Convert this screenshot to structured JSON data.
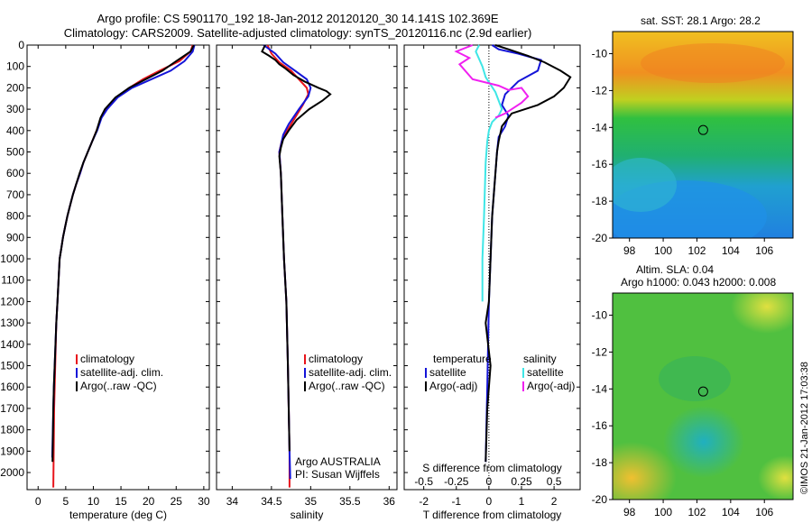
{
  "titles": {
    "line1": "Argo profile: CS 5901170_192 18-Jan-2012 20120120_30 14.141S 102.369E",
    "line2": "Climatology: CARS2009. Satellite-adjusted climatology: synTS_20120116.nc (2.9d earlier)"
  },
  "sst_map": {
    "title": "sat. SST: 28.1 Argo: 28.2"
  },
  "sla_map": {
    "title1": "Altim. SLA: 0.04",
    "title2": "Argo h1000: 0.043 h2000: 0.008"
  },
  "stamp": "©IMOS 21-Jan-2012 17:03:38",
  "colors": {
    "climatology": "#e8141b",
    "satellite": "#1414d8",
    "argo": "#000000",
    "sat_salinity": "#3ee6e6",
    "argo_salinity": "#f020f0"
  },
  "chart_data": [
    {
      "type": "line",
      "xlabel": "temperature (deg C)",
      "xlim": [
        -2,
        31
      ],
      "ylim": [
        2080,
        0
      ],
      "xticks": [
        0,
        5,
        10,
        15,
        20,
        25,
        30
      ],
      "yticks": [
        0,
        100,
        200,
        300,
        400,
        500,
        600,
        700,
        800,
        900,
        1000,
        1100,
        1200,
        1300,
        1400,
        1500,
        1600,
        1700,
        1800,
        1900,
        2000
      ],
      "legend": [
        "climatology",
        "satellite-adj. clim.",
        "Argo(..raw -QC)"
      ],
      "series": [
        {
          "name": "climatology",
          "color": "#e8141b",
          "x": [
            28,
            27.6,
            25.6,
            22,
            19,
            16.5,
            14.2,
            12.3,
            11.4,
            10.6,
            9.8,
            9.0,
            8.2,
            7.6,
            6.9,
            6.3,
            5.8,
            5.3,
            4.9,
            4.5,
            4.2,
            3.9,
            3.7,
            3.5,
            3.3,
            3.2,
            3.1,
            3.0,
            2.9,
            2.75
          ],
          "y": [
            0,
            30,
            75,
            120,
            160,
            200,
            245,
            300,
            340,
            400,
            450,
            500,
            550,
            600,
            650,
            700,
            750,
            800,
            850,
            900,
            950,
            1000,
            1100,
            1200,
            1300,
            1400,
            1500,
            1600,
            1700,
            2070
          ]
        },
        {
          "name": "satellite-adj. clim.",
          "color": "#1414d8",
          "x": [
            28.3,
            28,
            26.5,
            24,
            20.5,
            17,
            14.4,
            12.5,
            11.5,
            10.7,
            9.8,
            9.0,
            8.2,
            7.6,
            6.9,
            6.3,
            5.8,
            5.3,
            4.9,
            4.5,
            4.2,
            3.9,
            3.7,
            3.5,
            3.3,
            3.15,
            3.0,
            2.85,
            2.75,
            2.55
          ],
          "y": [
            0,
            30,
            75,
            120,
            160,
            200,
            245,
            300,
            340,
            400,
            450,
            500,
            550,
            600,
            650,
            700,
            750,
            800,
            850,
            900,
            950,
            1000,
            1100,
            1200,
            1300,
            1400,
            1500,
            1600,
            1700,
            1930
          ]
        },
        {
          "name": "Argo(..raw -QC)",
          "color": "#000000",
          "x": [
            28.2,
            27.6,
            25,
            22.5,
            19.5,
            16.5,
            14,
            12.1,
            11.3,
            10.6,
            9.8,
            9.0,
            8.2,
            7.5,
            6.9,
            6.3,
            5.8,
            5.3,
            4.9,
            4.5,
            4.2,
            3.9,
            3.7,
            3.5,
            3.3,
            3.15,
            3.0,
            2.85,
            2.75,
            2.6
          ],
          "y": [
            0,
            30,
            75,
            120,
            160,
            200,
            245,
            300,
            340,
            400,
            450,
            500,
            550,
            600,
            650,
            700,
            750,
            800,
            850,
            900,
            950,
            1000,
            1100,
            1200,
            1300,
            1400,
            1500,
            1600,
            1700,
            1950
          ]
        }
      ]
    },
    {
      "type": "line",
      "xlabel": "salinity",
      "xlim": [
        33.8,
        36.1
      ],
      "ylim": [
        2080,
        0
      ],
      "xticks": [
        34,
        34.5,
        35,
        35.5,
        36
      ],
      "yticks": [
        0,
        100,
        200,
        300,
        400,
        500,
        600,
        700,
        800,
        900,
        1000,
        1100,
        1200,
        1300,
        1400,
        1500,
        1600,
        1700,
        1800,
        1900,
        2000
      ],
      "legend": [
        "climatology",
        "satellite-adj. clim.",
        "Argo(..raw -QC)"
      ],
      "annotations": [
        "Argo AUSTRALIA",
        "PI: Susan Wijffels"
      ],
      "series": [
        {
          "name": "climatology",
          "color": "#e8141b",
          "x": [
            34.45,
            34.5,
            34.6,
            34.75,
            34.85,
            34.95,
            34.97,
            34.9,
            34.8,
            34.7,
            34.63,
            34.6,
            34.62,
            34.64,
            34.66,
            34.69,
            34.71,
            34.72,
            34.73,
            34.73
          ],
          "y": [
            0,
            40,
            80,
            120,
            160,
            200,
            230,
            280,
            340,
            400,
            450,
            500,
            600,
            800,
            1000,
            1200,
            1500,
            1700,
            1900,
            2070
          ]
        },
        {
          "name": "satellite-adj. clim.",
          "color": "#1414d8",
          "x": [
            34.4,
            34.55,
            34.65,
            34.8,
            34.95,
            35.0,
            34.97,
            34.85,
            34.72,
            34.65,
            34.62,
            34.6,
            34.62,
            34.64,
            34.66,
            34.69,
            34.71,
            34.72,
            34.73,
            34.74
          ],
          "y": [
            0,
            40,
            80,
            120,
            160,
            200,
            240,
            300,
            370,
            420,
            470,
            500,
            600,
            800,
            1000,
            1200,
            1500,
            1700,
            1900,
            2030
          ]
        },
        {
          "name": "Argo(..raw -QC)",
          "color": "#000000",
          "x": [
            34.42,
            34.38,
            34.47,
            34.55,
            34.6,
            34.68,
            34.78,
            34.92,
            35.1,
            35.2,
            35.25,
            35.15,
            34.98,
            34.82,
            34.72,
            34.65,
            34.62,
            34.6,
            34.62,
            34.64,
            34.66,
            34.69,
            34.71,
            34.72,
            34.73
          ],
          "y": [
            0,
            30,
            50,
            70,
            90,
            110,
            140,
            170,
            200,
            215,
            230,
            260,
            300,
            350,
            400,
            440,
            480,
            520,
            600,
            800,
            1000,
            1200,
            1500,
            1700,
            1900
          ]
        }
      ]
    },
    {
      "type": "line",
      "xlabel": "T difference from climatology",
      "xlabel_top": "S difference from climatology",
      "xlim": [
        -2.6,
        2.8
      ],
      "ylim": [
        2080,
        0
      ],
      "xticks": [
        -2,
        -1,
        0,
        1,
        2
      ],
      "xticks_top": [
        "-0.5",
        "-0.25",
        "0",
        "0.25",
        "0.5"
      ],
      "yticks": [
        0,
        100,
        200,
        300,
        400,
        500,
        600,
        700,
        800,
        900,
        1000,
        1100,
        1200,
        1300,
        1400,
        1500,
        1600,
        1700,
        1800,
        1900,
        2000
      ],
      "legend_temperature": [
        "temperature",
        "satellite",
        "Argo(-adj)"
      ],
      "legend_salinity": [
        "salinity",
        "satellite",
        "Argo(-adj)"
      ],
      "series": [
        {
          "name": "satellite",
          "group": "temperature",
          "color": "#1414d8",
          "x": [
            0.1,
            0.3,
            0.9,
            1.6,
            1.5,
            0.9,
            0.7,
            0.5,
            0.4,
            0.6,
            0.5,
            0.3,
            0.25,
            0.2,
            0.15,
            0.1,
            0.05,
            0.0,
            -0.05,
            -0.1
          ],
          "y": [
            0,
            20,
            40,
            70,
            120,
            170,
            200,
            230,
            280,
            330,
            380,
            430,
            500,
            600,
            700,
            800,
            1000,
            1200,
            1600,
            1950
          ]
        },
        {
          "name": "Argo(-adj)",
          "group": "temperature",
          "color": "#000000",
          "x": [
            0.2,
            0.6,
            1.2,
            1.7,
            2.2,
            2.5,
            2.3,
            2.0,
            1.5,
            0.7,
            0.4,
            0.3,
            0.25,
            0.2,
            0.1,
            0.05,
            0.0,
            -0.1,
            0.05,
            -0.05,
            -0.1
          ],
          "y": [
            0,
            20,
            50,
            80,
            120,
            150,
            200,
            240,
            280,
            320,
            380,
            450,
            500,
            600,
            800,
            1000,
            1200,
            1300,
            1500,
            1700,
            1950
          ]
        },
        {
          "name": "satellite",
          "group": "salinity",
          "color": "#3ee6e6",
          "x": [
            -0.3,
            -0.4,
            -0.2,
            -0.1,
            0.2,
            0.4,
            0.3,
            0.1,
            0.0,
            -0.05,
            -0.1,
            -0.15,
            -0.2,
            -0.2
          ],
          "y": [
            0,
            30,
            100,
            150,
            220,
            300,
            330,
            360,
            400,
            450,
            550,
            800,
            1000,
            1200
          ]
        },
        {
          "name": "Argo(-adj)",
          "group": "salinity",
          "color": "#f020f0",
          "x": [
            -0.5,
            -1.0,
            -0.6,
            -0.9,
            -0.5,
            0.3,
            0.6,
            1.0,
            1.2,
            1.0,
            0.5,
            0.2
          ],
          "y": [
            0,
            30,
            60,
            90,
            160,
            190,
            210,
            200,
            240,
            270,
            320,
            340
          ]
        }
      ]
    },
    {
      "type": "heatmap",
      "title": "sat. SST: 28.1 Argo: 28.2",
      "xlim": [
        97,
        107.7
      ],
      "ylim": [
        -20,
        -8.8
      ],
      "xticks": [
        98,
        100,
        102,
        104,
        106
      ],
      "yticks": [
        -10,
        -12,
        -14,
        -16,
        -18,
        -20
      ],
      "argo_position": [
        102.37,
        -14.14
      ]
    },
    {
      "type": "heatmap",
      "title": "Altim. SLA: 0.04 / Argo h1000: 0.043 h2000: 0.008",
      "xlim": [
        97,
        107.7
      ],
      "ylim": [
        -20,
        -8.8
      ],
      "xticks": [
        98,
        100,
        102,
        104,
        106
      ],
      "yticks": [
        -10,
        -12,
        -14,
        -16,
        -18,
        -20
      ],
      "argo_position": [
        102.37,
        -14.14
      ]
    }
  ]
}
